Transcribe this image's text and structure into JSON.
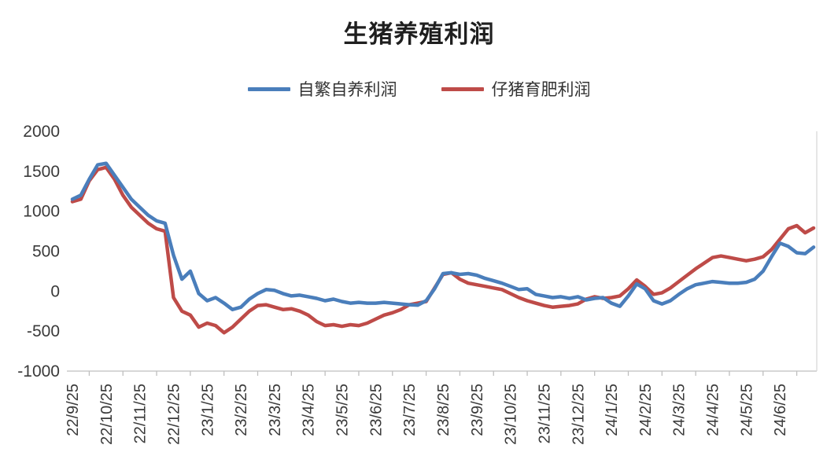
{
  "chart_data": {
    "type": "line",
    "title": "生猪养殖利润",
    "xlabel": "",
    "ylabel": "",
    "ylim": [
      -1000,
      2000
    ],
    "y_ticks": [
      2000,
      1500,
      1000,
      500,
      0,
      -500,
      -1000
    ],
    "grid": false,
    "legend_position": "top",
    "points_per_tick": 4,
    "x_tick_labels": [
      "22/9/25",
      "22/10/25",
      "22/11/25",
      "22/12/25",
      "23/1/25",
      "23/2/25",
      "23/3/25",
      "23/4/25",
      "23/5/25",
      "23/6/25",
      "23/7/25",
      "23/8/25",
      "23/9/25",
      "23/10/25",
      "23/11/25",
      "23/12/25",
      "24/1/25",
      "24/2/25",
      "24/3/25",
      "24/4/25",
      "24/5/25",
      "24/6/25"
    ],
    "series": [
      {
        "name": "自繁自养利润",
        "color": "#4A7EBB",
        "values": [
          1150,
          1200,
          1400,
          1580,
          1600,
          1450,
          1300,
          1150,
          1050,
          950,
          880,
          850,
          450,
          150,
          250,
          -30,
          -120,
          -80,
          -150,
          -230,
          -200,
          -100,
          -30,
          20,
          10,
          -30,
          -60,
          -50,
          -70,
          -90,
          -120,
          -100,
          -130,
          -150,
          -140,
          -150,
          -150,
          -140,
          -150,
          -160,
          -170,
          -175,
          -120,
          30,
          220,
          230,
          210,
          220,
          200,
          160,
          130,
          100,
          60,
          20,
          30,
          -40,
          -60,
          -80,
          -70,
          -90,
          -70,
          -110,
          -90,
          -80,
          -150,
          -190,
          -60,
          90,
          30,
          -120,
          -160,
          -120,
          -40,
          30,
          80,
          100,
          120,
          110,
          100,
          100,
          110,
          150,
          250,
          430,
          600,
          560,
          480,
          470,
          550
        ]
      },
      {
        "name": "仔猪育肥利润",
        "color": "#BE4B48",
        "values": [
          1120,
          1150,
          1380,
          1520,
          1550,
          1400,
          1200,
          1050,
          950,
          850,
          780,
          750,
          -80,
          -250,
          -300,
          -450,
          -400,
          -430,
          -520,
          -450,
          -350,
          -250,
          -180,
          -170,
          -200,
          -230,
          -220,
          -250,
          -300,
          -380,
          -430,
          -420,
          -440,
          -420,
          -430,
          -400,
          -350,
          -300,
          -270,
          -230,
          -170,
          -150,
          -130,
          40,
          210,
          230,
          150,
          100,
          80,
          60,
          40,
          20,
          -30,
          -80,
          -120,
          -150,
          -180,
          -200,
          -190,
          -180,
          -160,
          -100,
          -70,
          -90,
          -80,
          -60,
          30,
          140,
          60,
          -40,
          -20,
          40,
          120,
          200,
          280,
          350,
          420,
          440,
          420,
          400,
          380,
          400,
          430,
          520,
          650,
          780,
          820,
          730,
          790
        ]
      }
    ]
  }
}
